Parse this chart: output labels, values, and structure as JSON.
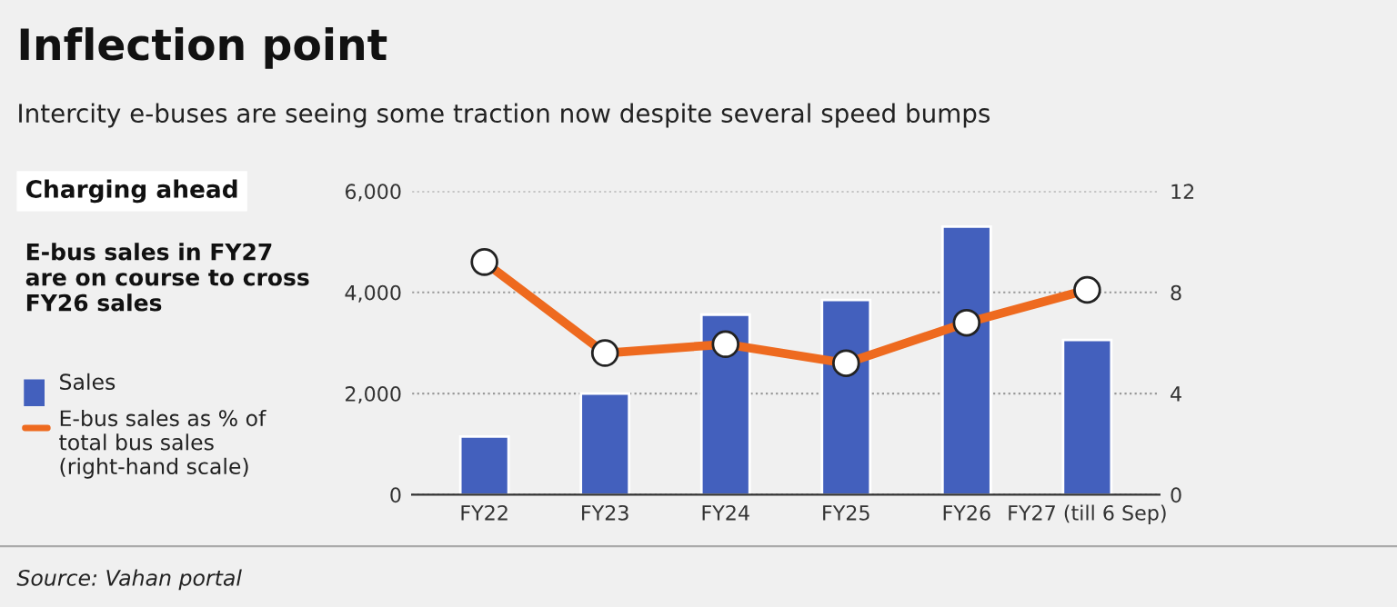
{
  "chart_data": {
    "type": "bar",
    "title": "Inflection point",
    "subtitle": "Intercity e-buses are seeing some traction now despite several speed bumps",
    "categories": [
      "FY22",
      "FY23",
      "FY24",
      "FY25",
      "FY26",
      "FY27 (till 6 Sep)"
    ],
    "series": [
      {
        "name": "Sales",
        "color": "#4360bd",
        "values": [
          1150,
          2000,
          3560,
          3850,
          5300,
          3060
        ]
      },
      {
        "name": "E-bus sales as % of total bus sales (right-hand scale)",
        "type": "line",
        "axis": "y2",
        "color": "#ee6a1f",
        "marker": "circle",
        "values": [
          9.2,
          5.6,
          5.95,
          5.2,
          6.8,
          8.1
        ]
      }
    ],
    "ylim": [
      0,
      6000
    ],
    "yticks": [
      0,
      {
        "value": 2000,
        "label": "2,000"
      },
      {
        "value": 4000,
        "label": "4,000"
      },
      {
        "value": 6000,
        "label": "6,000"
      }
    ],
    "y2lim": [
      0,
      12
    ],
    "y2ticks": [
      0,
      4,
      8,
      12
    ],
    "grid": "y",
    "legend": "left",
    "annotations": [
      "Charging ahead",
      "E-bus sales in FY27 are on course to cross FY26 sales",
      "Source: Vahan portal"
    ]
  }
}
